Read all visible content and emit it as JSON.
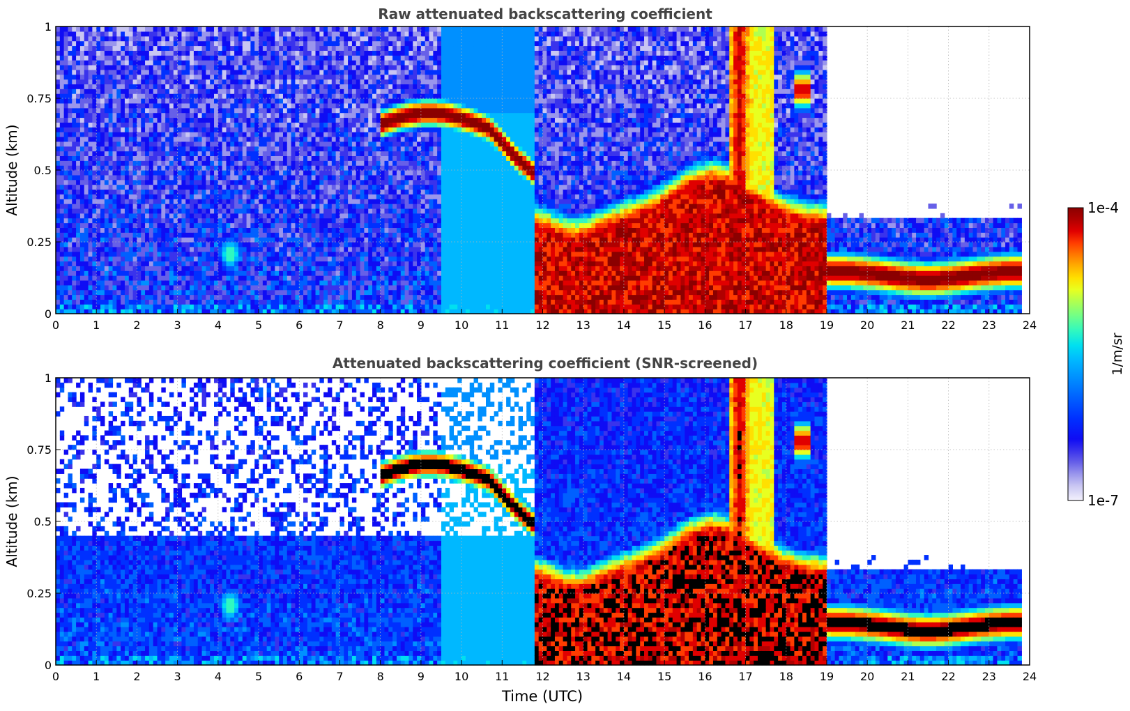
{
  "colorbar": {
    "max_label": "1e-4",
    "min_label": "1e-7",
    "unit_label": "1/m/sr",
    "range": [
      1e-07,
      0.0001
    ],
    "scale": "log",
    "colors": [
      "#f4f2fd",
      "#c9c6f2",
      "#9a96ec",
      "#6760e8",
      "#3a33ec",
      "#0f0cf4",
      "#0030ff",
      "#0060ff",
      "#0090ff",
      "#00b8ff",
      "#00e0f0",
      "#30f8c0",
      "#70ff88",
      "#b0ff50",
      "#e8ff20",
      "#ffe000",
      "#ffb000",
      "#ff7800",
      "#ff3c00",
      "#e00000",
      "#b00000",
      "#8b0000"
    ]
  },
  "chart_data": [
    {
      "type": "heatmap",
      "title": "Raw attenuated backscattering coefficient",
      "xlabel": "",
      "ylabel": "Altitude (km)",
      "xlim": [
        0,
        24
      ],
      "ylim": [
        0,
        1
      ],
      "x_ticks": [
        "0",
        "1",
        "2",
        "3",
        "4",
        "5",
        "6",
        "7",
        "8",
        "9",
        "10",
        "11",
        "12",
        "13",
        "14",
        "15",
        "16",
        "17",
        "18",
        "19",
        "20",
        "21",
        "22",
        "23",
        "24"
      ],
      "y_ticks": [
        "0",
        "0.25",
        "0.5",
        "0.75",
        "1"
      ],
      "grid": true,
      "screened": false
    },
    {
      "type": "heatmap",
      "title": "Attenuated backscattering coefficient (SNR-screened)",
      "xlabel": "Time (UTC)",
      "ylabel": "Altitude (km)",
      "xlim": [
        0,
        24
      ],
      "ylim": [
        0,
        1
      ],
      "x_ticks": [
        "0",
        "1",
        "2",
        "3",
        "4",
        "5",
        "6",
        "7",
        "8",
        "9",
        "10",
        "11",
        "12",
        "13",
        "14",
        "15",
        "16",
        "17",
        "18",
        "19",
        "20",
        "21",
        "22",
        "23",
        "24"
      ],
      "y_ticks": [
        "0",
        "0.25",
        "0.5",
        "0.75",
        "1"
      ],
      "grid": true,
      "screened": true
    }
  ]
}
